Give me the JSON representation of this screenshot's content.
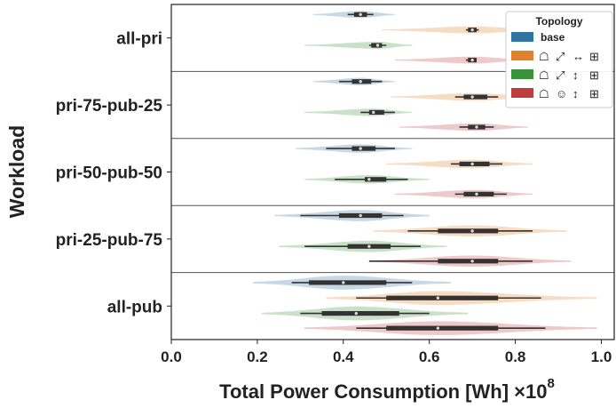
{
  "chart_data": {
    "type": "violin",
    "orientation": "horizontal",
    "ylabel": "Workload",
    "xlabel": "Total Power Consumption [Wh] ×10",
    "x_exponent": "8",
    "xlim": [
      0.0,
      1.03
    ],
    "xticks": [
      "0.0",
      "0.2",
      "0.4",
      "0.6",
      "0.8",
      "1.0"
    ],
    "xtick_values": [
      0.0,
      0.2,
      0.4,
      0.6,
      0.8,
      1.0
    ],
    "categories": [
      "all-pri",
      "pri-75-pub-25",
      "pri-50-pub-50",
      "pri-25-pub-75",
      "all-pub"
    ],
    "legend": {
      "title": "Topology",
      "location": "top-right",
      "entries": [
        {
          "key": "base",
          "label": "base",
          "color": "#3274a1",
          "glyphs": []
        },
        {
          "key": "t2",
          "label": "",
          "color": "#e1812c",
          "glyphs": [
            "hierarchy-icon",
            "resize-icon",
            "horizontal-arrows-icon",
            "network-icon"
          ]
        },
        {
          "key": "t3",
          "label": "",
          "color": "#3a923a",
          "glyphs": [
            "hierarchy-icon",
            "resize-icon",
            "vertical-arrows-icon",
            "network-icon"
          ]
        },
        {
          "key": "t4",
          "label": "",
          "color": "#c03d3e",
          "glyphs": [
            "hierarchy-icon",
            "emoji-icon",
            "vertical-arrows-icon",
            "network-icon"
          ]
        }
      ]
    },
    "series": [
      {
        "name": "base",
        "color": "#3274a1",
        "stats": [
          {
            "min": 0.33,
            "q1": 0.425,
            "median": 0.44,
            "q3": 0.455,
            "max": 0.52,
            "w_lo": 0.41,
            "w_hi": 0.47
          },
          {
            "min": 0.33,
            "q1": 0.42,
            "median": 0.44,
            "q3": 0.465,
            "max": 0.52,
            "w_lo": 0.39,
            "w_hi": 0.49
          },
          {
            "min": 0.29,
            "q1": 0.42,
            "median": 0.44,
            "q3": 0.475,
            "max": 0.56,
            "w_lo": 0.36,
            "w_hi": 0.52
          },
          {
            "min": 0.24,
            "q1": 0.39,
            "median": 0.44,
            "q3": 0.49,
            "max": 0.6,
            "w_lo": 0.3,
            "w_hi": 0.54
          },
          {
            "min": 0.19,
            "q1": 0.32,
            "median": 0.4,
            "q3": 0.5,
            "max": 0.65,
            "w_lo": 0.28,
            "w_hi": 0.56
          }
        ]
      },
      {
        "name": "t2",
        "color": "#e1812c",
        "stats": [
          {
            "min": 0.49,
            "q1": 0.69,
            "median": 0.7,
            "q3": 0.71,
            "max": 0.87,
            "w_lo": 0.685,
            "w_hi": 0.715
          },
          {
            "min": 0.51,
            "q1": 0.68,
            "median": 0.7,
            "q3": 0.735,
            "max": 0.86,
            "w_lo": 0.66,
            "w_hi": 0.76
          },
          {
            "min": 0.5,
            "q1": 0.67,
            "median": 0.7,
            "q3": 0.74,
            "max": 0.84,
            "w_lo": 0.65,
            "w_hi": 0.77
          },
          {
            "min": 0.47,
            "q1": 0.62,
            "median": 0.7,
            "q3": 0.76,
            "max": 0.92,
            "w_lo": 0.55,
            "w_hi": 0.84
          },
          {
            "min": 0.36,
            "q1": 0.5,
            "median": 0.62,
            "q3": 0.76,
            "max": 0.99,
            "w_lo": 0.43,
            "w_hi": 0.86
          }
        ]
      },
      {
        "name": "t3",
        "color": "#3a923a",
        "stats": [
          {
            "min": 0.31,
            "q1": 0.465,
            "median": 0.48,
            "q3": 0.49,
            "max": 0.56,
            "w_lo": 0.46,
            "w_hi": 0.5
          },
          {
            "min": 0.31,
            "q1": 0.46,
            "median": 0.47,
            "q3": 0.495,
            "max": 0.56,
            "w_lo": 0.44,
            "w_hi": 0.52
          },
          {
            "min": 0.31,
            "q1": 0.45,
            "median": 0.46,
            "q3": 0.5,
            "max": 0.6,
            "w_lo": 0.38,
            "w_hi": 0.55
          },
          {
            "min": 0.25,
            "q1": 0.41,
            "median": 0.46,
            "q3": 0.51,
            "max": 0.64,
            "w_lo": 0.31,
            "w_hi": 0.58
          },
          {
            "min": 0.21,
            "q1": 0.35,
            "median": 0.43,
            "q3": 0.53,
            "max": 0.69,
            "w_lo": 0.3,
            "w_hi": 0.6
          }
        ]
      },
      {
        "name": "t4",
        "color": "#c03d3e",
        "stats": [
          {
            "min": 0.52,
            "q1": 0.69,
            "median": 0.7,
            "q3": 0.71,
            "max": 0.83,
            "w_lo": 0.685,
            "w_hi": 0.71
          },
          {
            "min": 0.53,
            "q1": 0.69,
            "median": 0.71,
            "q3": 0.73,
            "max": 0.83,
            "w_lo": 0.67,
            "w_hi": 0.75
          },
          {
            "min": 0.52,
            "q1": 0.68,
            "median": 0.71,
            "q3": 0.75,
            "max": 0.84,
            "w_lo": 0.66,
            "w_hi": 0.78
          },
          {
            "min": 0.46,
            "q1": 0.62,
            "median": 0.7,
            "q3": 0.76,
            "max": 0.93,
            "w_lo": 0.46,
            "w_hi": 0.84
          },
          {
            "min": 0.31,
            "q1": 0.5,
            "median": 0.62,
            "q3": 0.76,
            "max": 0.99,
            "w_lo": 0.43,
            "w_hi": 0.87
          }
        ]
      }
    ],
    "grid": false
  }
}
